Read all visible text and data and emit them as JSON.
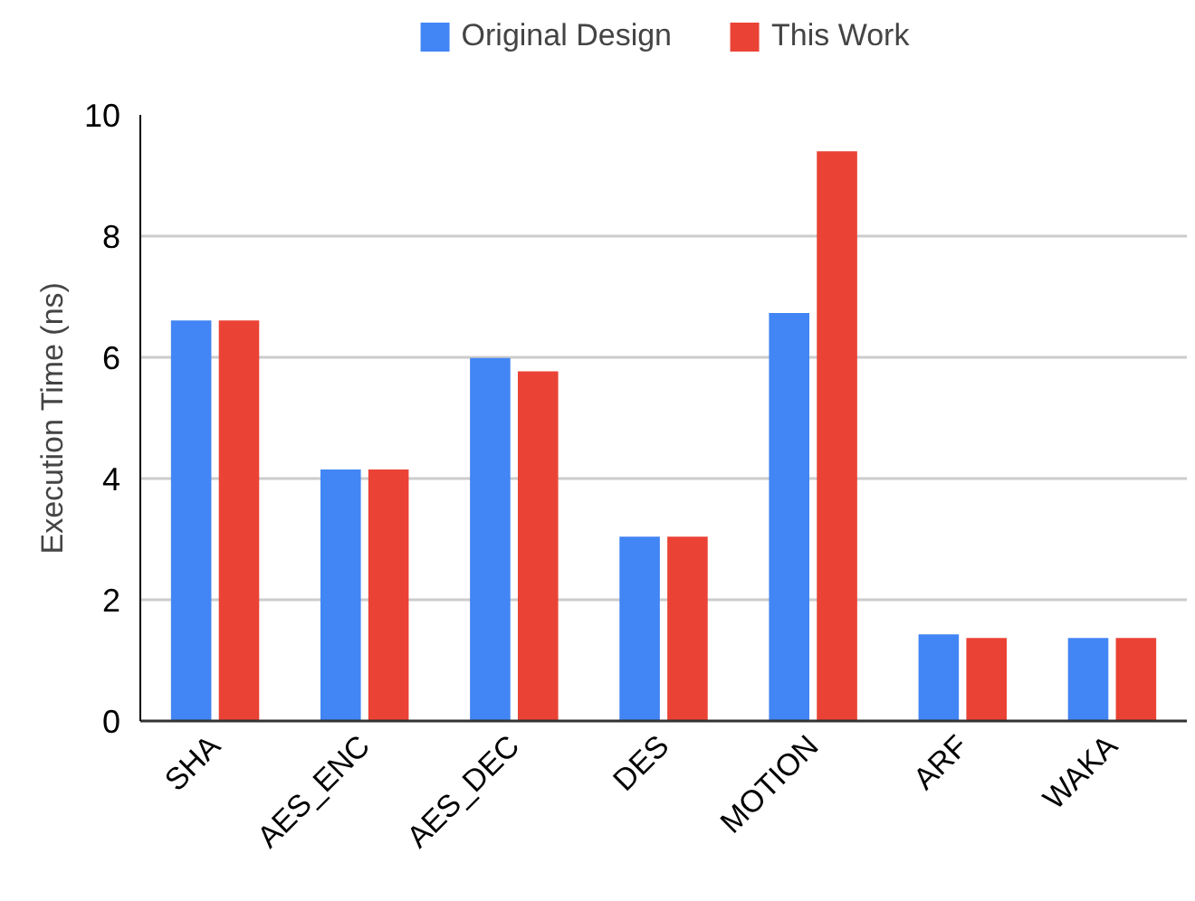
{
  "chart_data": {
    "type": "bar",
    "ylabel": "Execution Time (ns)",
    "categories": [
      "SHA",
      "AES_ENC",
      "AES_DEC",
      "DES",
      "MOTION",
      "ARF",
      "WAKA"
    ],
    "series": [
      {
        "name": "Original Design",
        "color": "#4285f4",
        "values": [
          6.61,
          4.15,
          5.99,
          3.04,
          6.73,
          1.43,
          1.37
        ]
      },
      {
        "name": "This Work",
        "color": "#ea4335",
        "values": [
          6.61,
          4.15,
          5.77,
          3.04,
          9.4,
          1.37,
          1.37
        ]
      }
    ],
    "ylim": [
      0,
      10
    ],
    "yticks": [
      0,
      2,
      4,
      6,
      8,
      10
    ],
    "grid": "y",
    "legend": "top"
  }
}
